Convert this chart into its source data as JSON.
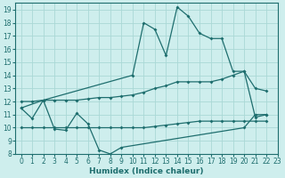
{
  "xlabel": "Humidex (Indice chaleur)",
  "xlim": [
    -0.5,
    23
  ],
  "ylim": [
    8,
    19.5
  ],
  "xticks": [
    0,
    1,
    2,
    3,
    4,
    5,
    6,
    7,
    8,
    9,
    10,
    11,
    12,
    13,
    14,
    15,
    16,
    17,
    18,
    19,
    20,
    21,
    22,
    23
  ],
  "yticks": [
    8,
    9,
    10,
    11,
    12,
    13,
    14,
    15,
    16,
    17,
    18,
    19
  ],
  "background_color": "#ceeeed",
  "grid_color": "#aad8d6",
  "line_color": "#1e6e6e",
  "line1_x": [
    0,
    1,
    2,
    3,
    4,
    5,
    6,
    7,
    8,
    9,
    20,
    21,
    22
  ],
  "line1_y": [
    11.5,
    10.7,
    12.1,
    9.9,
    9.8,
    11.1,
    10.3,
    8.3,
    8.0,
    8.5,
    10.0,
    11.0,
    11.0
  ],
  "line2_x": [
    0,
    1,
    2,
    3,
    4,
    5,
    6,
    7,
    8,
    9,
    10,
    11,
    12,
    13,
    14,
    15,
    16,
    17,
    18,
    19,
    20,
    21,
    22
  ],
  "line2_y": [
    10.0,
    10.0,
    10.0,
    10.0,
    10.0,
    10.0,
    10.0,
    10.0,
    10.0,
    10.0,
    10.0,
    10.0,
    10.1,
    10.2,
    10.3,
    10.4,
    10.5,
    10.5,
    10.5,
    10.5,
    10.5,
    10.5,
    10.5
  ],
  "line3_x": [
    0,
    1,
    2,
    3,
    4,
    5,
    6,
    7,
    8,
    9,
    10,
    11,
    12,
    13,
    14,
    15,
    16,
    17,
    18,
    19,
    20,
    21,
    22
  ],
  "line3_y": [
    12.0,
    12.0,
    12.1,
    12.1,
    12.1,
    12.1,
    12.2,
    12.3,
    12.3,
    12.4,
    12.5,
    12.7,
    13.0,
    13.2,
    13.5,
    13.5,
    13.5,
    13.5,
    13.7,
    14.0,
    14.3,
    13.0,
    12.8
  ],
  "line4_x": [
    0,
    2,
    10,
    11,
    12,
    13,
    14,
    15,
    16,
    17,
    18,
    19,
    20,
    21,
    22
  ],
  "line4_y": [
    11.5,
    12.1,
    14.0,
    18.0,
    17.5,
    15.5,
    19.2,
    18.5,
    17.2,
    16.8,
    16.8,
    14.3,
    14.3,
    10.8,
    11.0
  ]
}
